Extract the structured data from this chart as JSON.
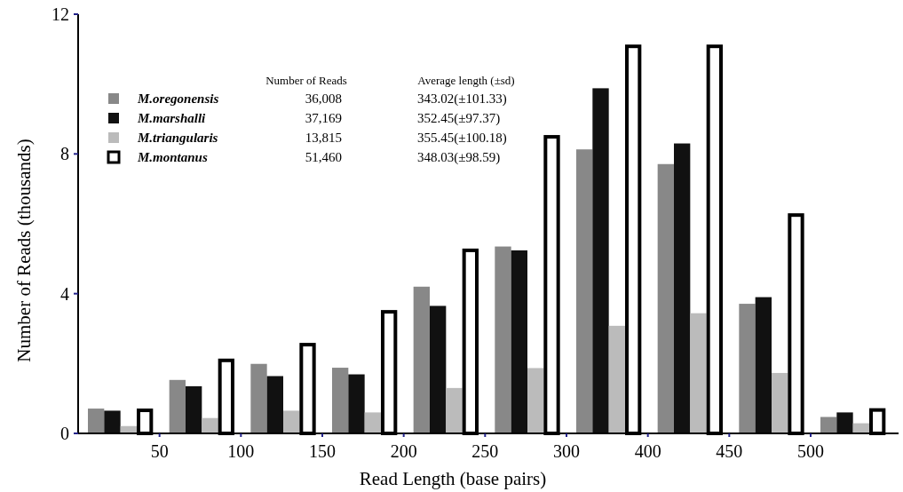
{
  "chart_data": {
    "type": "bar",
    "xlabel": "Read Length (base pairs)",
    "ylabel": "Number of Reads (thousands)",
    "categories": [
      null,
      null,
      null,
      null,
      null,
      null,
      null,
      null,
      null,
      null
    ],
    "ylim": [
      0,
      12
    ],
    "yticks": [
      0,
      4,
      8,
      12
    ],
    "grid": false,
    "legend": "top left",
    "series": [
      {
        "name": "M.oregonensis",
        "color": "#888888",
        "values": [
          0.71,
          1.53,
          1.99,
          1.88,
          4.2,
          5.35,
          8.13,
          7.71,
          3.71,
          0.47
        ]
      },
      {
        "name": "M.marshalli",
        "color": "#111111",
        "values": [
          0.65,
          1.35,
          1.64,
          1.69,
          3.65,
          5.24,
          9.88,
          8.3,
          3.9,
          0.6
        ]
      },
      {
        "name": "M.triangularis",
        "color": "#bbbbbb",
        "values": [
          0.21,
          0.44,
          0.65,
          0.6,
          1.3,
          1.87,
          3.08,
          3.44,
          1.73,
          0.29
        ]
      },
      {
        "name": "M.montanus",
        "color": "#ffffff",
        "values": [
          0.66,
          2.09,
          2.54,
          3.48,
          5.24,
          8.49,
          11.08,
          11.08,
          6.25,
          0.67
        ]
      }
    ],
    "annotations": [
      "Number of Reads",
      "Average length (±sd)",
      "36,008",
      "343.02(±101.33)",
      "37,169",
      "352.45(±97.37)",
      "13,815",
      "355.45(±100.18)",
      "51,460",
      "348.03(±98.59)",
      "50",
      "100",
      "150",
      "200",
      "250",
      "300",
      "400",
      "450",
      "500"
    ]
  }
}
